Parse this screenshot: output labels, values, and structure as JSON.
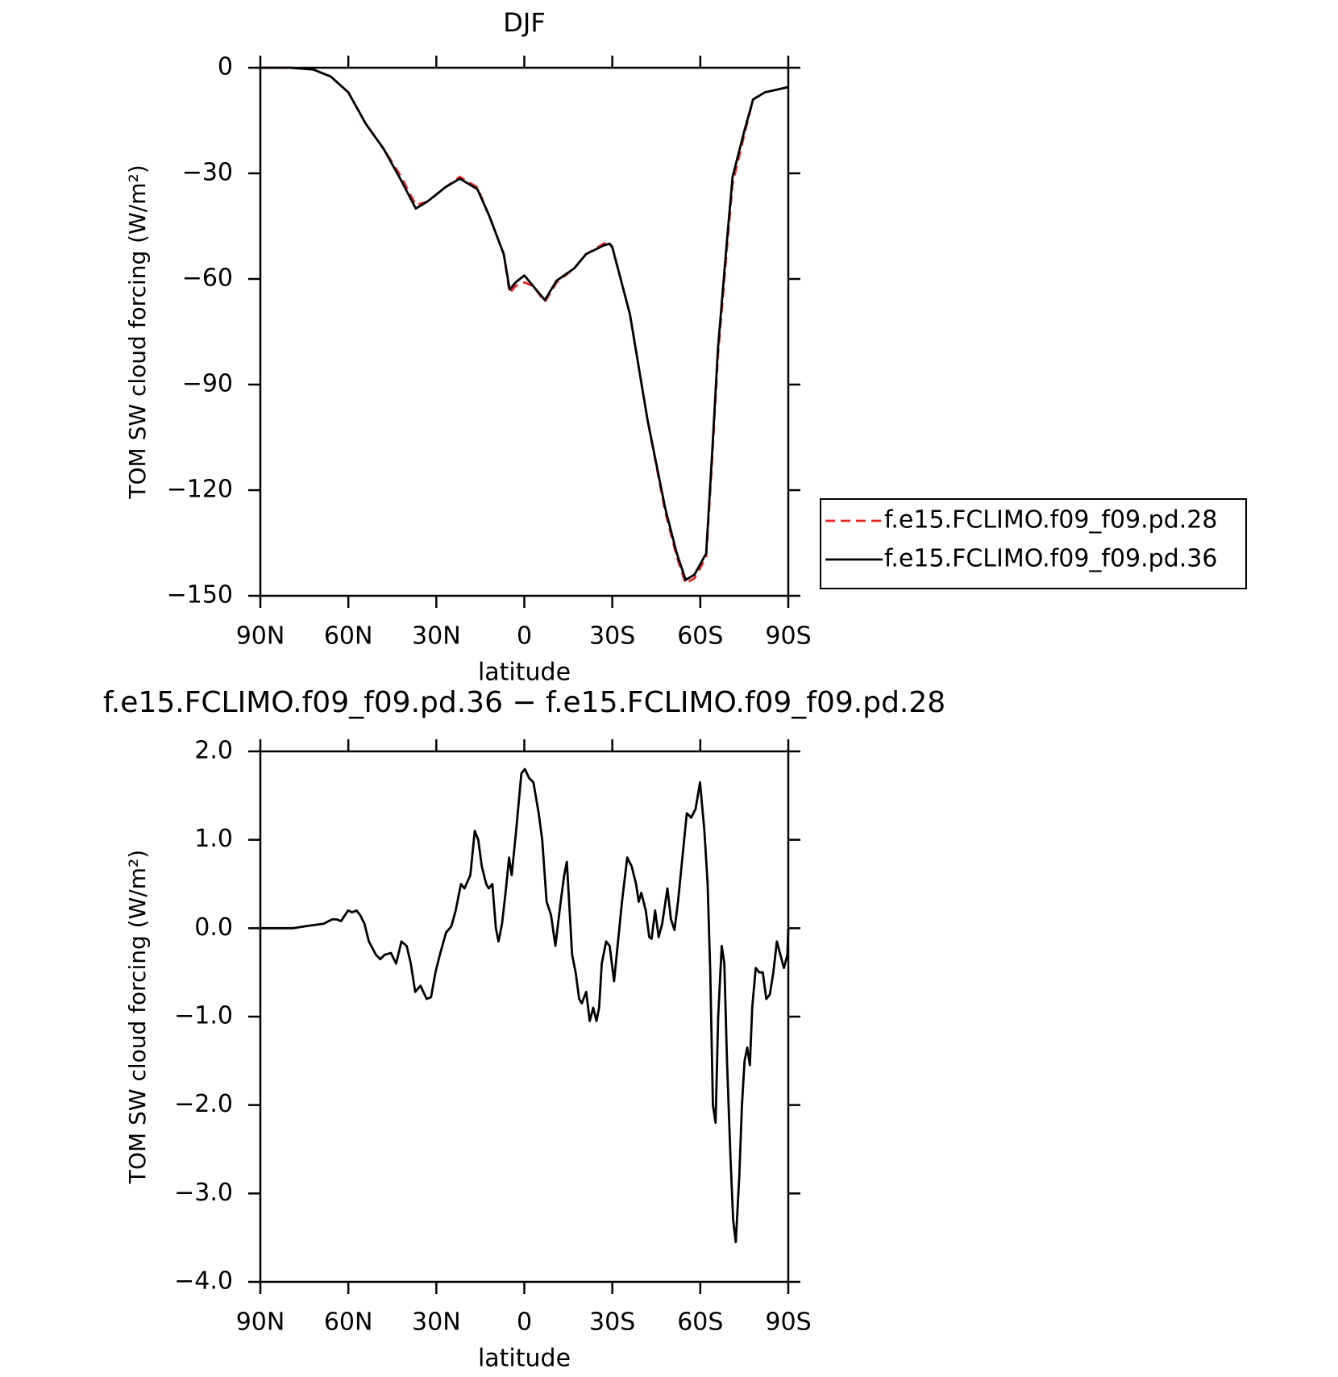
{
  "chart_data": [
    {
      "type": "line",
      "title": "DJF",
      "xlabel": "latitude",
      "ylabel": "TOM SW cloud forcing (W/m²)",
      "x": [
        90,
        80,
        72,
        66,
        60,
        54,
        48,
        42,
        37,
        33,
        27,
        22,
        16,
        12,
        7,
        5,
        3,
        0,
        -3,
        -7,
        -11,
        -17,
        -21,
        -27,
        -29,
        -30,
        -36,
        -42,
        -48,
        -52,
        -55,
        -58,
        -62,
        -64,
        -66,
        -69,
        -71,
        -75,
        -78,
        -82,
        -90
      ],
      "series": [
        {
          "name": "f.e15.FCLIMO.f09_f09.pd.28",
          "color": "#e8231f",
          "dashed": true,
          "values": [
            0,
            0,
            -0.5,
            -2.5,
            -7,
            -16,
            -23,
            -31,
            -39,
            -38,
            -34,
            -31,
            -34,
            -42,
            -53,
            -64,
            -62,
            -61,
            -62,
            -66.5,
            -61,
            -57,
            -53,
            -50,
            -49.5,
            -51,
            -70,
            -100,
            -126,
            -139,
            -146.5,
            -145,
            -139,
            -112,
            -82,
            -52,
            -33,
            -19,
            -9,
            -7,
            -5.5
          ]
        },
        {
          "name": "f.e15.FCLIMO.f09_f09.pd.36",
          "color": "#000000",
          "dashed": false,
          "values": [
            0,
            0,
            -0.5,
            -2.5,
            -7,
            -16,
            -23,
            -32,
            -40,
            -38,
            -34,
            -31.5,
            -34.5,
            -42,
            -53,
            -63,
            -61,
            -59,
            -62,
            -66,
            -60.5,
            -57,
            -53,
            -50.5,
            -50,
            -51,
            -70,
            -100,
            -125,
            -138,
            -145.5,
            -144,
            -138,
            -110,
            -80,
            -50,
            -31,
            -18,
            -9,
            -7,
            -5.5
          ]
        }
      ],
      "xlim": [
        90,
        -90
      ],
      "xticks": [
        {
          "value": 90,
          "label": "90N"
        },
        {
          "value": 60,
          "label": "60N"
        },
        {
          "value": 30,
          "label": "30N"
        },
        0,
        {
          "value": -30,
          "label": "30S"
        },
        {
          "value": -60,
          "label": "60S"
        },
        {
          "value": -90,
          "label": "90S"
        }
      ],
      "ylim": [
        -150,
        0
      ],
      "yticks": [
        0,
        {
          "value": -30,
          "label": "−30"
        },
        {
          "value": -60,
          "label": "−60"
        },
        {
          "value": -90,
          "label": "−90"
        },
        {
          "value": -120,
          "label": "−120"
        },
        {
          "value": -150,
          "label": "−150"
        }
      ],
      "legend": "outside-right"
    },
    {
      "type": "line",
      "title": "f.e15.FCLIMO.f09_f09.pd.36 − f.e15.FCLIMO.f09_f09.pd.28",
      "xlabel": "latitude",
      "ylabel": "TOM SW cloud forcing (W/m²)",
      "x": [
        90,
        79,
        73,
        68.5,
        65.5,
        64,
        62.5,
        60.1,
        58.7,
        57.2,
        56,
        54.5,
        53,
        50.6,
        49.1,
        47.6,
        45.5,
        43.7,
        41.9,
        40.1,
        38.7,
        37.2,
        35.4,
        33.3,
        31.8,
        30.3,
        28.8,
        26.7,
        24.9,
        23.4,
        21.6,
        20.4,
        18.4,
        16.9,
        15.7,
        14.5,
        13,
        12.1,
        10.9,
        9.7,
        8.8,
        7.6,
        6.4,
        5.2,
        4.3,
        2.8,
        1,
        -0.2,
        -1.6,
        -3.1,
        -4.9,
        -6.1,
        -7.6,
        -9.1,
        -10.6,
        -12.4,
        -13.6,
        -14.5,
        -16.3,
        -17.5,
        -18.7,
        -19.6,
        -21.1,
        -22.3,
        -23.5,
        -24.6,
        -25.5,
        -26.4,
        -27.9,
        -29.1,
        -30.6,
        -31.8,
        -33.3,
        -35.1,
        -36.6,
        -38.1,
        -39,
        -39.9,
        -41.4,
        -42.6,
        -43.4,
        -44.6,
        -45.8,
        -47,
        -48.8,
        -50,
        -51.2,
        -52.4,
        -53.9,
        -55.4,
        -56.9,
        -58.4,
        -59.9,
        -61.4,
        -62.5,
        -63.4,
        -64.3,
        -65.2,
        -66.1,
        -67.3,
        -68.2,
        -69.1,
        -70.3,
        -71.2,
        -72.1,
        -73.3,
        -74.2,
        -75.1,
        -76,
        -76.9,
        -77.7,
        -78.9,
        -80.1,
        -81.3,
        -82.5,
        -83.7,
        -84.9,
        -86.1,
        -87.3,
        -88.5,
        -89.7,
        -90
      ],
      "values": [
        0,
        0,
        0.03,
        0.05,
        0.1,
        0.1,
        0.08,
        0.2,
        0.18,
        0.2,
        0.15,
        0.05,
        -0.15,
        -0.3,
        -0.35,
        -0.3,
        -0.28,
        -0.4,
        -0.15,
        -0.2,
        -0.4,
        -0.72,
        -0.65,
        -0.8,
        -0.78,
        -0.5,
        -0.3,
        -0.05,
        0.02,
        0.2,
        0.5,
        0.45,
        0.6,
        1.1,
        1.0,
        0.7,
        0.5,
        0.45,
        0.5,
        0,
        -0.15,
        0.05,
        0.4,
        0.8,
        0.6,
        1.1,
        1.75,
        1.8,
        1.7,
        1.65,
        1.3,
        1.0,
        0.3,
        0.15,
        -0.2,
        0.3,
        0.6,
        0.75,
        -0.3,
        -0.5,
        -0.8,
        -0.85,
        -0.72,
        -1.05,
        -0.9,
        -1.05,
        -0.9,
        -0.4,
        -0.15,
        -0.2,
        -0.6,
        -0.2,
        0.3,
        0.8,
        0.7,
        0.5,
        0.3,
        0.4,
        0.2,
        -0.1,
        -0.12,
        0.2,
        -0.1,
        0.05,
        0.45,
        0.1,
        -0.02,
        0.3,
        0.8,
        1.3,
        1.25,
        1.35,
        1.65,
        1.1,
        0.5,
        -0.5,
        -2.0,
        -2.2,
        -1.0,
        -0.2,
        -0.4,
        -1.5,
        -2.6,
        -3.3,
        -3.55,
        -2.8,
        -2.0,
        -1.5,
        -1.35,
        -1.55,
        -0.9,
        -0.45,
        -0.5,
        -0.5,
        -0.8,
        -0.75,
        -0.5,
        -0.15,
        -0.3,
        -0.45,
        -0.3,
        0
      ],
      "color": "#000000",
      "xlim": [
        90,
        -90
      ],
      "xticks": [
        {
          "value": 90,
          "label": "90N"
        },
        {
          "value": 60,
          "label": "60N"
        },
        {
          "value": 30,
          "label": "30N"
        },
        0,
        {
          "value": -30,
          "label": "30S"
        },
        {
          "value": -60,
          "label": "60S"
        },
        {
          "value": -90,
          "label": "90S"
        }
      ],
      "ylim": [
        -4,
        2
      ],
      "yticks": [
        {
          "value": 2,
          "label": "2.0"
        },
        {
          "value": 1,
          "label": "1.0"
        },
        {
          "value": 0,
          "label": "0.0"
        },
        {
          "value": -1,
          "label": "−1.0"
        },
        {
          "value": -2,
          "label": "−2.0"
        },
        {
          "value": -3,
          "label": "−3.0"
        },
        {
          "value": -4,
          "label": "−4.0"
        }
      ]
    }
  ]
}
